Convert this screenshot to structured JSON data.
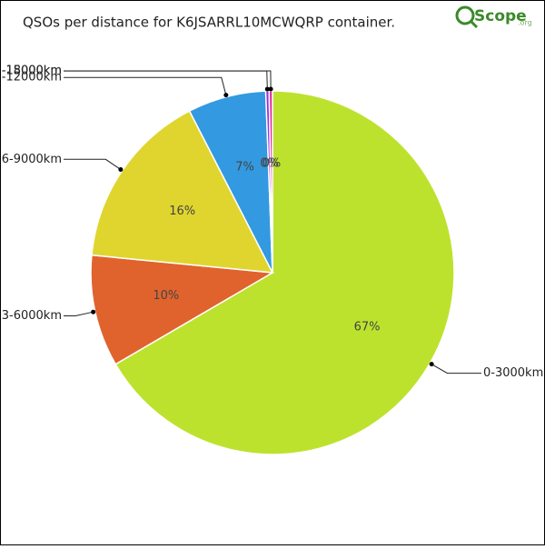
{
  "chart_data": {
    "type": "pie",
    "title": "QSOs per distance for K6JSARRL10MCWQRP container.",
    "logo": {
      "main": "Scope",
      "suffix": ".org"
    },
    "categories": [
      "0-3000km",
      "3-6000km",
      "6-9000km",
      "-12000km",
      "-15000km",
      "-18000km"
    ],
    "values": [
      67,
      10,
      16,
      7,
      0.3,
      0.3
    ],
    "value_labels": [
      "67%",
      "10%",
      "16%",
      "7%",
      "0%",
      "0%"
    ],
    "colors": [
      "#bde22e",
      "#e0632e",
      "#e0d52e",
      "#3399e0",
      "#9b2ee0",
      "#e02ea0"
    ]
  }
}
